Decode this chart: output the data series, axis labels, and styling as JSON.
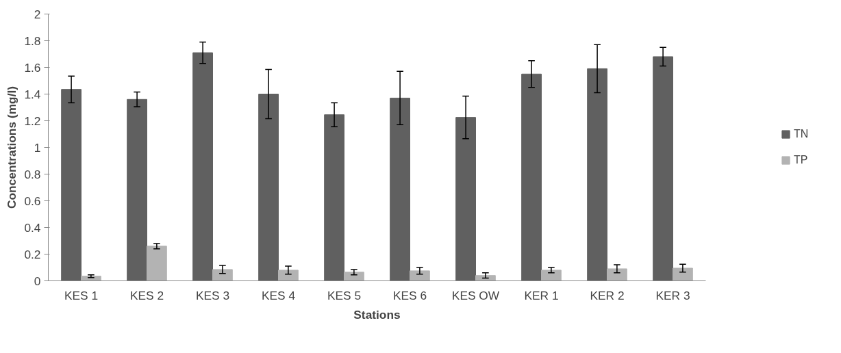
{
  "chart_data": {
    "type": "bar",
    "xlabel": "Stations",
    "ylabel": "Concentrations (mg/l)",
    "categories": [
      "KES 1",
      "KES 2",
      "KES 3",
      "KES 4",
      "KES 5",
      "KES 6",
      "KES OW",
      "KER 1",
      "KER 2",
      "KER 3"
    ],
    "series": [
      {
        "name": "TN",
        "color": "#606060",
        "values": [
          1.435,
          1.36,
          1.71,
          1.4,
          1.245,
          1.37,
          1.225,
          1.55,
          1.59,
          1.68
        ],
        "errors": [
          0.1,
          0.055,
          0.08,
          0.185,
          0.09,
          0.2,
          0.16,
          0.1,
          0.18,
          0.07
        ]
      },
      {
        "name": "TP",
        "color": "#b3b3b3",
        "values": [
          0.035,
          0.26,
          0.085,
          0.08,
          0.065,
          0.075,
          0.04,
          0.08,
          0.09,
          0.095
        ],
        "errors": [
          0.01,
          0.02,
          0.03,
          0.03,
          0.02,
          0.025,
          0.02,
          0.02,
          0.03,
          0.03
        ]
      }
    ],
    "ylim": [
      0,
      2
    ],
    "yticks": [
      0,
      0.2,
      0.4,
      0.6,
      0.8,
      1,
      1.2,
      1.4,
      1.6,
      1.8,
      2
    ],
    "grid": false,
    "legend": "right"
  }
}
